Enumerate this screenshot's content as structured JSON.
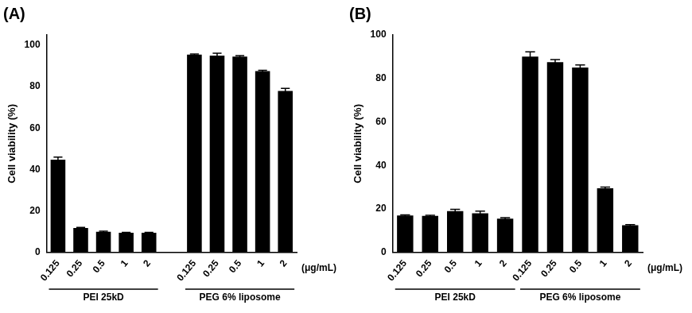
{
  "chart_data": [
    {
      "type": "bar",
      "title": "(A)",
      "y_label": "Cell viability (%)",
      "x_label": "(μg/mL)",
      "categories": [
        "0.125",
        "0.25",
        "0.5",
        "1",
        "2",
        null,
        "0.125",
        "0.25",
        "0.5",
        "1",
        "2"
      ],
      "values": [
        44.8,
        11.8,
        10,
        9.5,
        9.5,
        null,
        95.5,
        95,
        94.5,
        87.5,
        78
      ],
      "errors": [
        1.2,
        0.3,
        0.3,
        0.2,
        0.2,
        null,
        0.3,
        1.2,
        0.5,
        0.4,
        1.2
      ],
      "groups": [
        {
          "label": "PEI 25kD",
          "from": 0,
          "to": 4
        },
        {
          "label": "PEG 6% liposome",
          "from": 6,
          "to": 10
        }
      ],
      "color": "#000000",
      "ylim": [
        0,
        105
      ],
      "yticks": [
        0,
        20,
        40,
        60,
        80,
        100
      ],
      "grid": false
    },
    {
      "type": "bar",
      "title": "(B)",
      "y_label": "Cell viability (%)",
      "x_label": "(μg/mL)",
      "categories": [
        "0.125",
        "0.25",
        "0.5",
        "1",
        "2",
        "0.125",
        "0.25",
        "0.5",
        "1",
        "2"
      ],
      "values": [
        17,
        16.8,
        19,
        18,
        15.5,
        90,
        87.5,
        85,
        29.5,
        12.5
      ],
      "errors": [
        0.3,
        0.3,
        0.8,
        1,
        0.5,
        2.2,
        1.2,
        1.2,
        0.5,
        0.3
      ],
      "groups": [
        {
          "label": "PEI 25kD",
          "from": 0,
          "to": 4
        },
        {
          "label": "PEG 6% liposome",
          "from": 5,
          "to": 9
        }
      ],
      "color": "#000000",
      "ylim": [
        0,
        100
      ],
      "yticks": [
        0,
        20,
        40,
        60,
        80,
        100
      ],
      "grid": false
    }
  ]
}
